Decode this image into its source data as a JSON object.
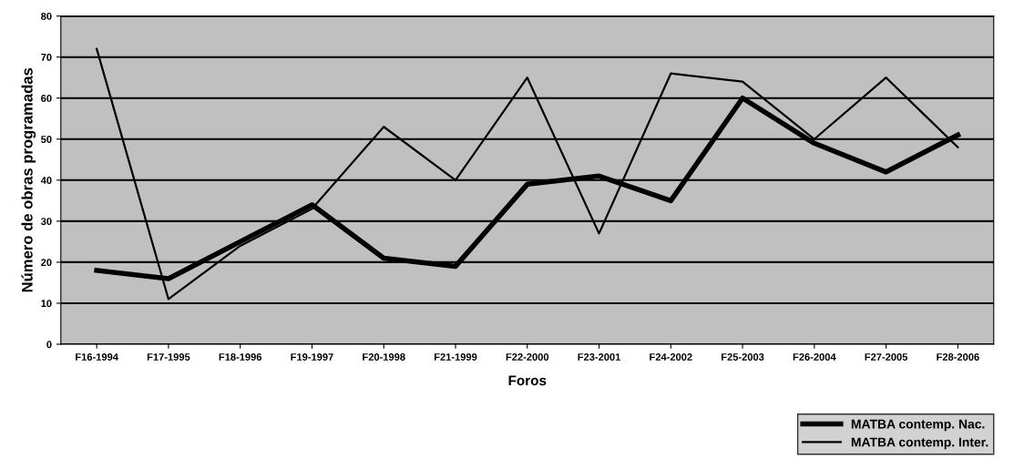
{
  "chart_data": {
    "type": "line",
    "xlabel": "Foros",
    "ylabel": "Número de obras programadas",
    "categories": [
      "F16-1994",
      "F17-1995",
      "F18-1996",
      "F19-1997",
      "F20-1998",
      "F21-1999",
      "F22-2000",
      "F23-2001",
      "F24-2002",
      "F25-2003",
      "F26-2004",
      "F27-2005",
      "F28-2006"
    ],
    "series": [
      {
        "name": "MATBA contemp. Nac.",
        "color": "#000000",
        "values": [
          18,
          16,
          25,
          34,
          21,
          19,
          39,
          41,
          35,
          60,
          49,
          42,
          51
        ]
      },
      {
        "name": "MATBA contemp. Inter.",
        "color": "#000000",
        "values": [
          72,
          11,
          24,
          33,
          53,
          40,
          65,
          27,
          66,
          64,
          50,
          65,
          48
        ]
      }
    ],
    "ylim": [
      0,
      80
    ],
    "yticks": [
      0,
      10,
      20,
      30,
      40,
      50,
      60,
      70,
      80
    ],
    "grid": "y",
    "legend": "bottom right",
    "marker": "none",
    "line_style": "solid"
  }
}
